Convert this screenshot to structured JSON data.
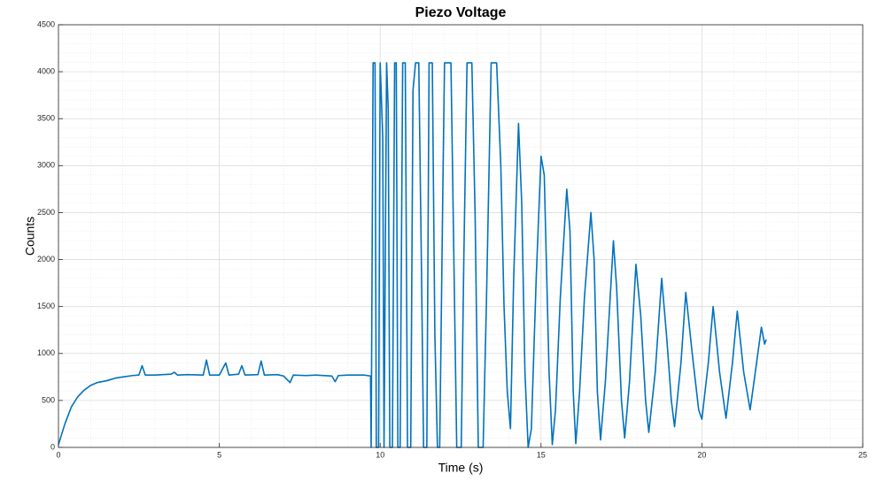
{
  "chart_data": {
    "type": "line",
    "title": "Piezo Voltage",
    "x_label": "Time (s)",
    "y_label": "Counts",
    "color": "#0072bd",
    "grid": true,
    "minor_grid": true,
    "xlim": [
      0,
      25
    ],
    "xticks": [
      0,
      5,
      10,
      15,
      20,
      25
    ],
    "ylim": [
      0,
      4500
    ],
    "yticks": [
      0,
      500,
      1000,
      1500,
      2000,
      2500,
      3000,
      3500,
      4000,
      4500
    ],
    "x": [
      0,
      0.2,
      0.4,
      0.6,
      0.8,
      1.0,
      1.2,
      1.5,
      1.8,
      2.0,
      2.3,
      2.5,
      2.6,
      2.7,
      3.0,
      3.5,
      3.6,
      3.7,
      4.0,
      4.5,
      4.6,
      4.7,
      5.0,
      5.2,
      5.3,
      5.6,
      5.7,
      5.8,
      6.2,
      6.3,
      6.4,
      6.8,
      7.0,
      7.2,
      7.3,
      7.7,
      8.0,
      8.5,
      8.6,
      8.7,
      9.0,
      9.5,
      9.7,
      9.72,
      9.78,
      9.84,
      9.88,
      9.95,
      10.0,
      10.08,
      10.12,
      10.2,
      10.25,
      10.3,
      10.38,
      10.45,
      10.5,
      10.55,
      10.62,
      10.7,
      10.78,
      10.85,
      10.95,
      11.02,
      11.1,
      11.2,
      11.28,
      11.35,
      11.45,
      11.52,
      11.62,
      11.7,
      11.78,
      11.85,
      11.95,
      12.0,
      12.2,
      12.3,
      12.38,
      12.52,
      12.6,
      12.7,
      12.85,
      12.95,
      13.05,
      13.2,
      13.3,
      13.45,
      13.62,
      13.75,
      13.85,
      13.95,
      14.05,
      14.15,
      14.3,
      14.4,
      14.5,
      14.6,
      14.7,
      14.85,
      15.0,
      15.1,
      15.25,
      15.35,
      15.45,
      15.6,
      15.8,
      15.9,
      16.0,
      16.08,
      16.2,
      16.35,
      16.55,
      16.65,
      16.75,
      16.85,
      17.0,
      17.25,
      17.35,
      17.5,
      17.6,
      17.75,
      17.95,
      18.1,
      18.25,
      18.35,
      18.55,
      18.75,
      18.9,
      19.05,
      19.15,
      19.35,
      19.5,
      19.7,
      19.9,
      20.0,
      20.2,
      20.35,
      20.55,
      20.75,
      20.95,
      21.1,
      21.3,
      21.5,
      21.7,
      21.85,
      21.95,
      22.0
    ],
    "values": [
      30,
      250,
      430,
      540,
      610,
      660,
      690,
      710,
      740,
      750,
      765,
      770,
      870,
      770,
      770,
      780,
      800,
      770,
      775,
      770,
      930,
      770,
      770,
      900,
      770,
      780,
      870,
      770,
      775,
      920,
      770,
      775,
      760,
      690,
      770,
      765,
      770,
      760,
      700,
      765,
      770,
      770,
      760,
      0,
      4095,
      4095,
      0,
      0,
      4095,
      3300,
      0,
      4095,
      3600,
      0,
      0,
      4095,
      4095,
      0,
      0,
      4095,
      4095,
      0,
      0,
      3800,
      4095,
      4095,
      2000,
      0,
      0,
      4095,
      4095,
      1200,
      0,
      0,
      2800,
      4095,
      4095,
      1800,
      0,
      0,
      2000,
      4095,
      4095,
      2500,
      0,
      0,
      1500,
      4095,
      4095,
      3000,
      1500,
      600,
      200,
      1800,
      3450,
      2600,
      800,
      0,
      200,
      1800,
      3100,
      2900,
      800,
      30,
      400,
      1600,
      2750,
      2300,
      600,
      40,
      600,
      1600,
      2500,
      2000,
      600,
      80,
      700,
      2200,
      1700,
      500,
      100,
      700,
      1950,
      1400,
      500,
      160,
      800,
      1800,
      1200,
      500,
      220,
      900,
      1650,
      1000,
      400,
      300,
      900,
      1500,
      800,
      310,
      900,
      1450,
      800,
      400,
      900,
      1280,
      1100,
      1150
    ]
  }
}
